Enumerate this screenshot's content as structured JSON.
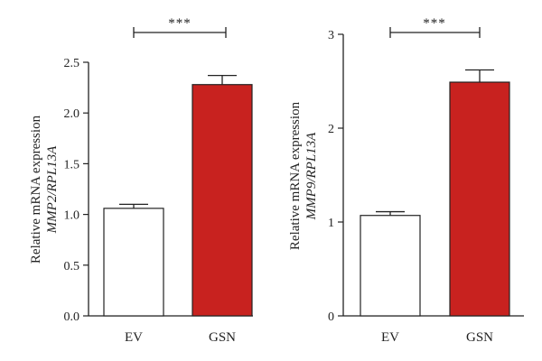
{
  "chart_data": [
    {
      "type": "bar",
      "categories": [
        "EV",
        "GSN"
      ],
      "values": [
        1.06,
        2.28
      ],
      "errors": [
        0.04,
        0.09
      ],
      "ylim": [
        0,
        2.5
      ],
      "yticks": [
        "0.0",
        "0.5",
        "1.0",
        "1.5",
        "2.0",
        "2.5"
      ],
      "ylabel_line1": "Relative mRNA expression",
      "ylabel_line2": "MMP2/RPL13A",
      "significance": "***",
      "colors": [
        "#ffffff",
        "#c8221f"
      ]
    },
    {
      "type": "bar",
      "categories": [
        "EV",
        "GSN"
      ],
      "values": [
        1.07,
        2.49
      ],
      "errors": [
        0.04,
        0.13
      ],
      "ylim": [
        0,
        3
      ],
      "yticks": [
        "0",
        "1",
        "2",
        "3"
      ],
      "ylabel_line1": "Relative mRNA expression",
      "ylabel_line2": "MMP9/RPL13A",
      "significance": "***",
      "colors": [
        "#ffffff",
        "#c8221f"
      ]
    }
  ]
}
